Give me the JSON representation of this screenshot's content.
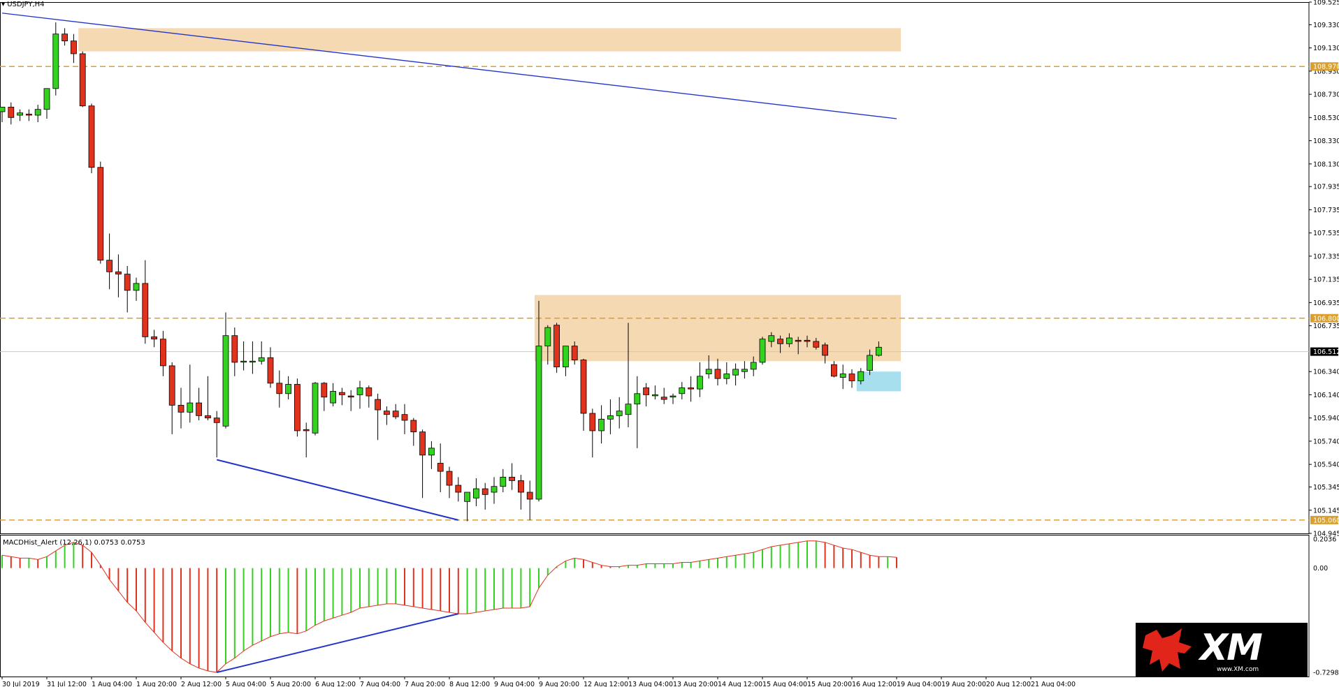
{
  "window": {
    "symbol_label": "USDJPY,H4",
    "indicator_label": "MACDHist_Alert (12,26,1) 0.0753 0.0753",
    "logo_text": "XM",
    "logo_url": "www.XM.com"
  },
  "colors": {
    "bull": "#32d21e",
    "bear": "#e1321e",
    "zone": "#f5d9b2",
    "current_zone": "#a8dfee",
    "trendline": "#2233cc",
    "level": "#d9a030",
    "grid": "#c8c8c8"
  },
  "chart_data": [
    {
      "type": "candlestick",
      "symbol": "USDJPY",
      "timeframe": "H4",
      "ylim": [
        104.945,
        109.525
      ],
      "y_ticks": [
        "109.525",
        "109.330",
        "109.130",
        "108.930",
        "108.730",
        "108.530",
        "108.330",
        "108.130",
        "107.935",
        "107.735",
        "107.535",
        "107.335",
        "107.135",
        "106.935",
        "106.735",
        "106.340",
        "106.140",
        "105.940",
        "105.740",
        "105.540",
        "105.345",
        "105.145",
        "104.945"
      ],
      "x_ticks": [
        "30 Jul 2019",
        "31 Jul 12:00",
        "1 Aug 04:00",
        "1 Aug 20:00",
        "2 Aug 12:00",
        "5 Aug 04:00",
        "5 Aug 20:00",
        "6 Aug 12:00",
        "7 Aug 04:00",
        "7 Aug 20:00",
        "8 Aug 12:00",
        "9 Aug 04:00",
        "9 Aug 20:00",
        "12 Aug 12:00",
        "13 Aug 04:00",
        "13 Aug 20:00",
        "14 Aug 12:00",
        "15 Aug 04:00",
        "15 Aug 20:00",
        "16 Aug 12:00",
        "19 Aug 04:00",
        "19 Aug 20:00",
        "20 Aug 12:00",
        "21 Aug 04:00"
      ],
      "price_labels": [
        {
          "value": 108.97,
          "text": "108.970"
        },
        {
          "value": 106.8,
          "text": "106.800"
        },
        {
          "value": 106.512,
          "text": "106.512"
        },
        {
          "value": 105.06,
          "text": "105.060"
        }
      ],
      "levels": [
        108.97,
        106.8,
        105.06
      ],
      "current_price": 106.512,
      "zones": [
        {
          "from": 109.1,
          "to": 109.3
        },
        {
          "from": 106.43,
          "to": 107.0
        },
        {
          "from": 106.17,
          "to": 106.34
        }
      ],
      "candles": [
        {
          "o": 108.58,
          "h": 108.62,
          "l": 108.49,
          "c": 108.62
        },
        {
          "o": 108.62,
          "h": 108.66,
          "l": 108.47,
          "c": 108.53
        },
        {
          "o": 108.55,
          "h": 108.6,
          "l": 108.5,
          "c": 108.57
        },
        {
          "o": 108.56,
          "h": 108.6,
          "l": 108.5,
          "c": 108.55
        },
        {
          "o": 108.55,
          "h": 108.64,
          "l": 108.49,
          "c": 108.6
        },
        {
          "o": 108.6,
          "h": 108.78,
          "l": 108.52,
          "c": 108.78
        },
        {
          "o": 108.78,
          "h": 109.35,
          "l": 108.72,
          "c": 109.25
        },
        {
          "o": 109.25,
          "h": 109.3,
          "l": 109.15,
          "c": 109.19
        },
        {
          "o": 109.19,
          "h": 109.25,
          "l": 109.0,
          "c": 109.08
        },
        {
          "o": 109.08,
          "h": 109.1,
          "l": 108.62,
          "c": 108.63
        },
        {
          "o": 108.63,
          "h": 108.65,
          "l": 108.05,
          "c": 108.1
        },
        {
          "o": 108.1,
          "h": 108.15,
          "l": 107.27,
          "c": 107.3
        },
        {
          "o": 107.3,
          "h": 107.53,
          "l": 107.05,
          "c": 107.2
        },
        {
          "o": 107.2,
          "h": 107.35,
          "l": 106.98,
          "c": 107.18
        },
        {
          "o": 107.18,
          "h": 107.25,
          "l": 106.85,
          "c": 107.04
        },
        {
          "o": 107.04,
          "h": 107.15,
          "l": 106.95,
          "c": 107.1
        },
        {
          "o": 107.1,
          "h": 107.3,
          "l": 106.58,
          "c": 106.64
        },
        {
          "o": 106.64,
          "h": 106.7,
          "l": 106.55,
          "c": 106.62
        },
        {
          "o": 106.62,
          "h": 106.69,
          "l": 106.3,
          "c": 106.39
        },
        {
          "o": 106.39,
          "h": 106.42,
          "l": 105.8,
          "c": 106.05
        },
        {
          "o": 106.05,
          "h": 106.2,
          "l": 105.85,
          "c": 105.99
        },
        {
          "o": 105.99,
          "h": 106.4,
          "l": 105.9,
          "c": 106.07
        },
        {
          "o": 106.07,
          "h": 106.2,
          "l": 105.92,
          "c": 105.96
        },
        {
          "o": 105.96,
          "h": 106.3,
          "l": 105.92,
          "c": 105.94
        },
        {
          "o": 105.94,
          "h": 106.0,
          "l": 105.6,
          "c": 105.9
        },
        {
          "o": 105.87,
          "h": 106.85,
          "l": 105.85,
          "c": 106.65
        },
        {
          "o": 106.65,
          "h": 106.72,
          "l": 106.3,
          "c": 106.42
        },
        {
          "o": 106.43,
          "h": 106.6,
          "l": 106.35,
          "c": 106.43
        },
        {
          "o": 106.43,
          "h": 106.6,
          "l": 106.32,
          "c": 106.43
        },
        {
          "o": 106.43,
          "h": 106.6,
          "l": 106.4,
          "c": 106.46
        },
        {
          "o": 106.46,
          "h": 106.55,
          "l": 106.2,
          "c": 106.24
        },
        {
          "o": 106.24,
          "h": 106.35,
          "l": 106.03,
          "c": 106.15
        },
        {
          "o": 106.15,
          "h": 106.3,
          "l": 106.1,
          "c": 106.23
        },
        {
          "o": 106.23,
          "h": 106.28,
          "l": 105.78,
          "c": 105.83
        },
        {
          "o": 105.84,
          "h": 105.9,
          "l": 105.6,
          "c": 105.83
        },
        {
          "o": 105.81,
          "h": 106.25,
          "l": 105.79,
          "c": 106.24
        },
        {
          "o": 106.24,
          "h": 106.25,
          "l": 106.0,
          "c": 106.12
        },
        {
          "o": 106.07,
          "h": 106.24,
          "l": 106.04,
          "c": 106.17
        },
        {
          "o": 106.16,
          "h": 106.2,
          "l": 106.05,
          "c": 106.14
        },
        {
          "o": 106.13,
          "h": 106.18,
          "l": 106.0,
          "c": 106.12
        },
        {
          "o": 106.14,
          "h": 106.26,
          "l": 106.02,
          "c": 106.2
        },
        {
          "o": 106.2,
          "h": 106.22,
          "l": 106.03,
          "c": 106.13
        },
        {
          "o": 106.1,
          "h": 106.15,
          "l": 105.75,
          "c": 106.01
        },
        {
          "o": 106.0,
          "h": 106.04,
          "l": 105.88,
          "c": 105.97
        },
        {
          "o": 106.0,
          "h": 106.06,
          "l": 105.93,
          "c": 105.95
        },
        {
          "o": 105.97,
          "h": 106.06,
          "l": 105.8,
          "c": 105.92
        },
        {
          "o": 105.92,
          "h": 105.94,
          "l": 105.7,
          "c": 105.82
        },
        {
          "o": 105.82,
          "h": 105.84,
          "l": 105.25,
          "c": 105.62
        },
        {
          "o": 105.62,
          "h": 105.74,
          "l": 105.5,
          "c": 105.68
        },
        {
          "o": 105.55,
          "h": 105.72,
          "l": 105.3,
          "c": 105.48
        },
        {
          "o": 105.48,
          "h": 105.52,
          "l": 105.25,
          "c": 105.36
        },
        {
          "o": 105.36,
          "h": 105.43,
          "l": 105.22,
          "c": 105.3
        },
        {
          "o": 105.22,
          "h": 105.3,
          "l": 105.05,
          "c": 105.3
        },
        {
          "o": 105.25,
          "h": 105.42,
          "l": 105.18,
          "c": 105.33
        },
        {
          "o": 105.33,
          "h": 105.38,
          "l": 105.15,
          "c": 105.28
        },
        {
          "o": 105.3,
          "h": 105.43,
          "l": 105.2,
          "c": 105.35
        },
        {
          "o": 105.35,
          "h": 105.5,
          "l": 105.3,
          "c": 105.43
        },
        {
          "o": 105.43,
          "h": 105.55,
          "l": 105.32,
          "c": 105.4
        },
        {
          "o": 105.4,
          "h": 105.45,
          "l": 105.15,
          "c": 105.3
        },
        {
          "o": 105.3,
          "h": 105.4,
          "l": 105.06,
          "c": 105.24
        },
        {
          "o": 105.24,
          "h": 106.95,
          "l": 105.22,
          "c": 106.56
        },
        {
          "o": 106.56,
          "h": 106.74,
          "l": 106.4,
          "c": 106.72
        },
        {
          "o": 106.74,
          "h": 106.76,
          "l": 106.33,
          "c": 106.38
        },
        {
          "o": 106.38,
          "h": 106.55,
          "l": 106.3,
          "c": 106.56
        },
        {
          "o": 106.56,
          "h": 106.6,
          "l": 106.4,
          "c": 106.44
        },
        {
          "o": 106.44,
          "h": 106.45,
          "l": 105.83,
          "c": 105.98
        },
        {
          "o": 105.98,
          "h": 106.02,
          "l": 105.6,
          "c": 105.83
        },
        {
          "o": 105.83,
          "h": 106.05,
          "l": 105.72,
          "c": 105.93
        },
        {
          "o": 105.93,
          "h": 106.1,
          "l": 105.8,
          "c": 105.96
        },
        {
          "o": 105.96,
          "h": 106.12,
          "l": 105.85,
          "c": 106.0
        },
        {
          "o": 105.97,
          "h": 106.76,
          "l": 105.86,
          "c": 106.06
        },
        {
          "o": 106.06,
          "h": 106.3,
          "l": 105.68,
          "c": 106.15
        },
        {
          "o": 106.2,
          "h": 106.24,
          "l": 106.04,
          "c": 106.14
        },
        {
          "o": 106.14,
          "h": 106.22,
          "l": 106.1,
          "c": 106.14
        },
        {
          "o": 106.12,
          "h": 106.2,
          "l": 106.06,
          "c": 106.1
        },
        {
          "o": 106.12,
          "h": 106.15,
          "l": 106.06,
          "c": 106.13
        },
        {
          "o": 106.15,
          "h": 106.25,
          "l": 106.1,
          "c": 106.2
        },
        {
          "o": 106.2,
          "h": 106.3,
          "l": 106.08,
          "c": 106.19
        },
        {
          "o": 106.19,
          "h": 106.42,
          "l": 106.12,
          "c": 106.3
        },
        {
          "o": 106.32,
          "h": 106.48,
          "l": 106.28,
          "c": 106.36
        },
        {
          "o": 106.36,
          "h": 106.45,
          "l": 106.22,
          "c": 106.28
        },
        {
          "o": 106.28,
          "h": 106.42,
          "l": 106.23,
          "c": 106.32
        },
        {
          "o": 106.31,
          "h": 106.41,
          "l": 106.22,
          "c": 106.36
        },
        {
          "o": 106.34,
          "h": 106.43,
          "l": 106.28,
          "c": 106.36
        },
        {
          "o": 106.36,
          "h": 106.47,
          "l": 106.3,
          "c": 106.42
        },
        {
          "o": 106.42,
          "h": 106.64,
          "l": 106.4,
          "c": 106.62
        },
        {
          "o": 106.6,
          "h": 106.68,
          "l": 106.55,
          "c": 106.65
        },
        {
          "o": 106.62,
          "h": 106.65,
          "l": 106.5,
          "c": 106.58
        },
        {
          "o": 106.58,
          "h": 106.67,
          "l": 106.55,
          "c": 106.63
        },
        {
          "o": 106.61,
          "h": 106.64,
          "l": 106.49,
          "c": 106.6
        },
        {
          "o": 106.61,
          "h": 106.65,
          "l": 106.55,
          "c": 106.6
        },
        {
          "o": 106.6,
          "h": 106.63,
          "l": 106.53,
          "c": 106.55
        },
        {
          "o": 106.57,
          "h": 106.59,
          "l": 106.41,
          "c": 106.48
        },
        {
          "o": 106.4,
          "h": 106.43,
          "l": 106.29,
          "c": 106.3
        },
        {
          "o": 106.29,
          "h": 106.4,
          "l": 106.19,
          "c": 106.32
        },
        {
          "o": 106.32,
          "h": 106.36,
          "l": 106.2,
          "c": 106.26
        },
        {
          "o": 106.26,
          "h": 106.37,
          "l": 106.23,
          "c": 106.34
        },
        {
          "o": 106.35,
          "h": 106.53,
          "l": 106.31,
          "c": 106.48
        },
        {
          "o": 106.48,
          "h": 106.6,
          "l": 106.47,
          "c": 106.55
        }
      ],
      "trendlines": [
        {
          "from": {
            "candle": 0,
            "value": 109.43
          },
          "to": {
            "candle": 100,
            "value": 108.52
          }
        },
        {
          "from": {
            "candle": 24,
            "value": 105.58
          },
          "to": {
            "candle": 51,
            "value": 105.06
          }
        }
      ]
    },
    {
      "type": "bar",
      "name": "MACDHist_Alert (12,26,1)",
      "ylim": [
        -0.7298,
        0.2036
      ],
      "y_ticks": [
        "0.2036",
        "0.00",
        "-0.7298"
      ],
      "values": [
        0.09,
        0.08,
        0.07,
        0.07,
        0.06,
        0.08,
        0.12,
        0.16,
        0.18,
        0.16,
        0.11,
        0.02,
        -0.08,
        -0.16,
        -0.24,
        -0.3,
        -0.38,
        -0.45,
        -0.52,
        -0.58,
        -0.63,
        -0.67,
        -0.7,
        -0.72,
        -0.73,
        -0.67,
        -0.63,
        -0.58,
        -0.54,
        -0.51,
        -0.48,
        -0.46,
        -0.45,
        -0.46,
        -0.44,
        -0.4,
        -0.37,
        -0.35,
        -0.33,
        -0.31,
        -0.28,
        -0.27,
        -0.26,
        -0.25,
        -0.25,
        -0.26,
        -0.27,
        -0.28,
        -0.29,
        -0.3,
        -0.31,
        -0.32,
        -0.32,
        -0.31,
        -0.3,
        -0.29,
        -0.28,
        -0.28,
        -0.28,
        -0.27,
        -0.14,
        -0.05,
        0.01,
        0.05,
        0.07,
        0.06,
        0.04,
        0.02,
        0.01,
        0.01,
        0.02,
        0.02,
        0.03,
        0.03,
        0.03,
        0.03,
        0.04,
        0.04,
        0.05,
        0.06,
        0.07,
        0.08,
        0.09,
        0.1,
        0.11,
        0.13,
        0.15,
        0.16,
        0.17,
        0.18,
        0.19,
        0.19,
        0.18,
        0.16,
        0.14,
        0.13,
        0.11,
        0.09,
        0.08,
        0.08,
        0.0753
      ],
      "colors_rule": "green when rising, red when falling",
      "trendline": {
        "from": {
          "bar": 24,
          "value": -0.73
        },
        "to": {
          "bar": 51,
          "value": -0.32
        }
      }
    }
  ]
}
